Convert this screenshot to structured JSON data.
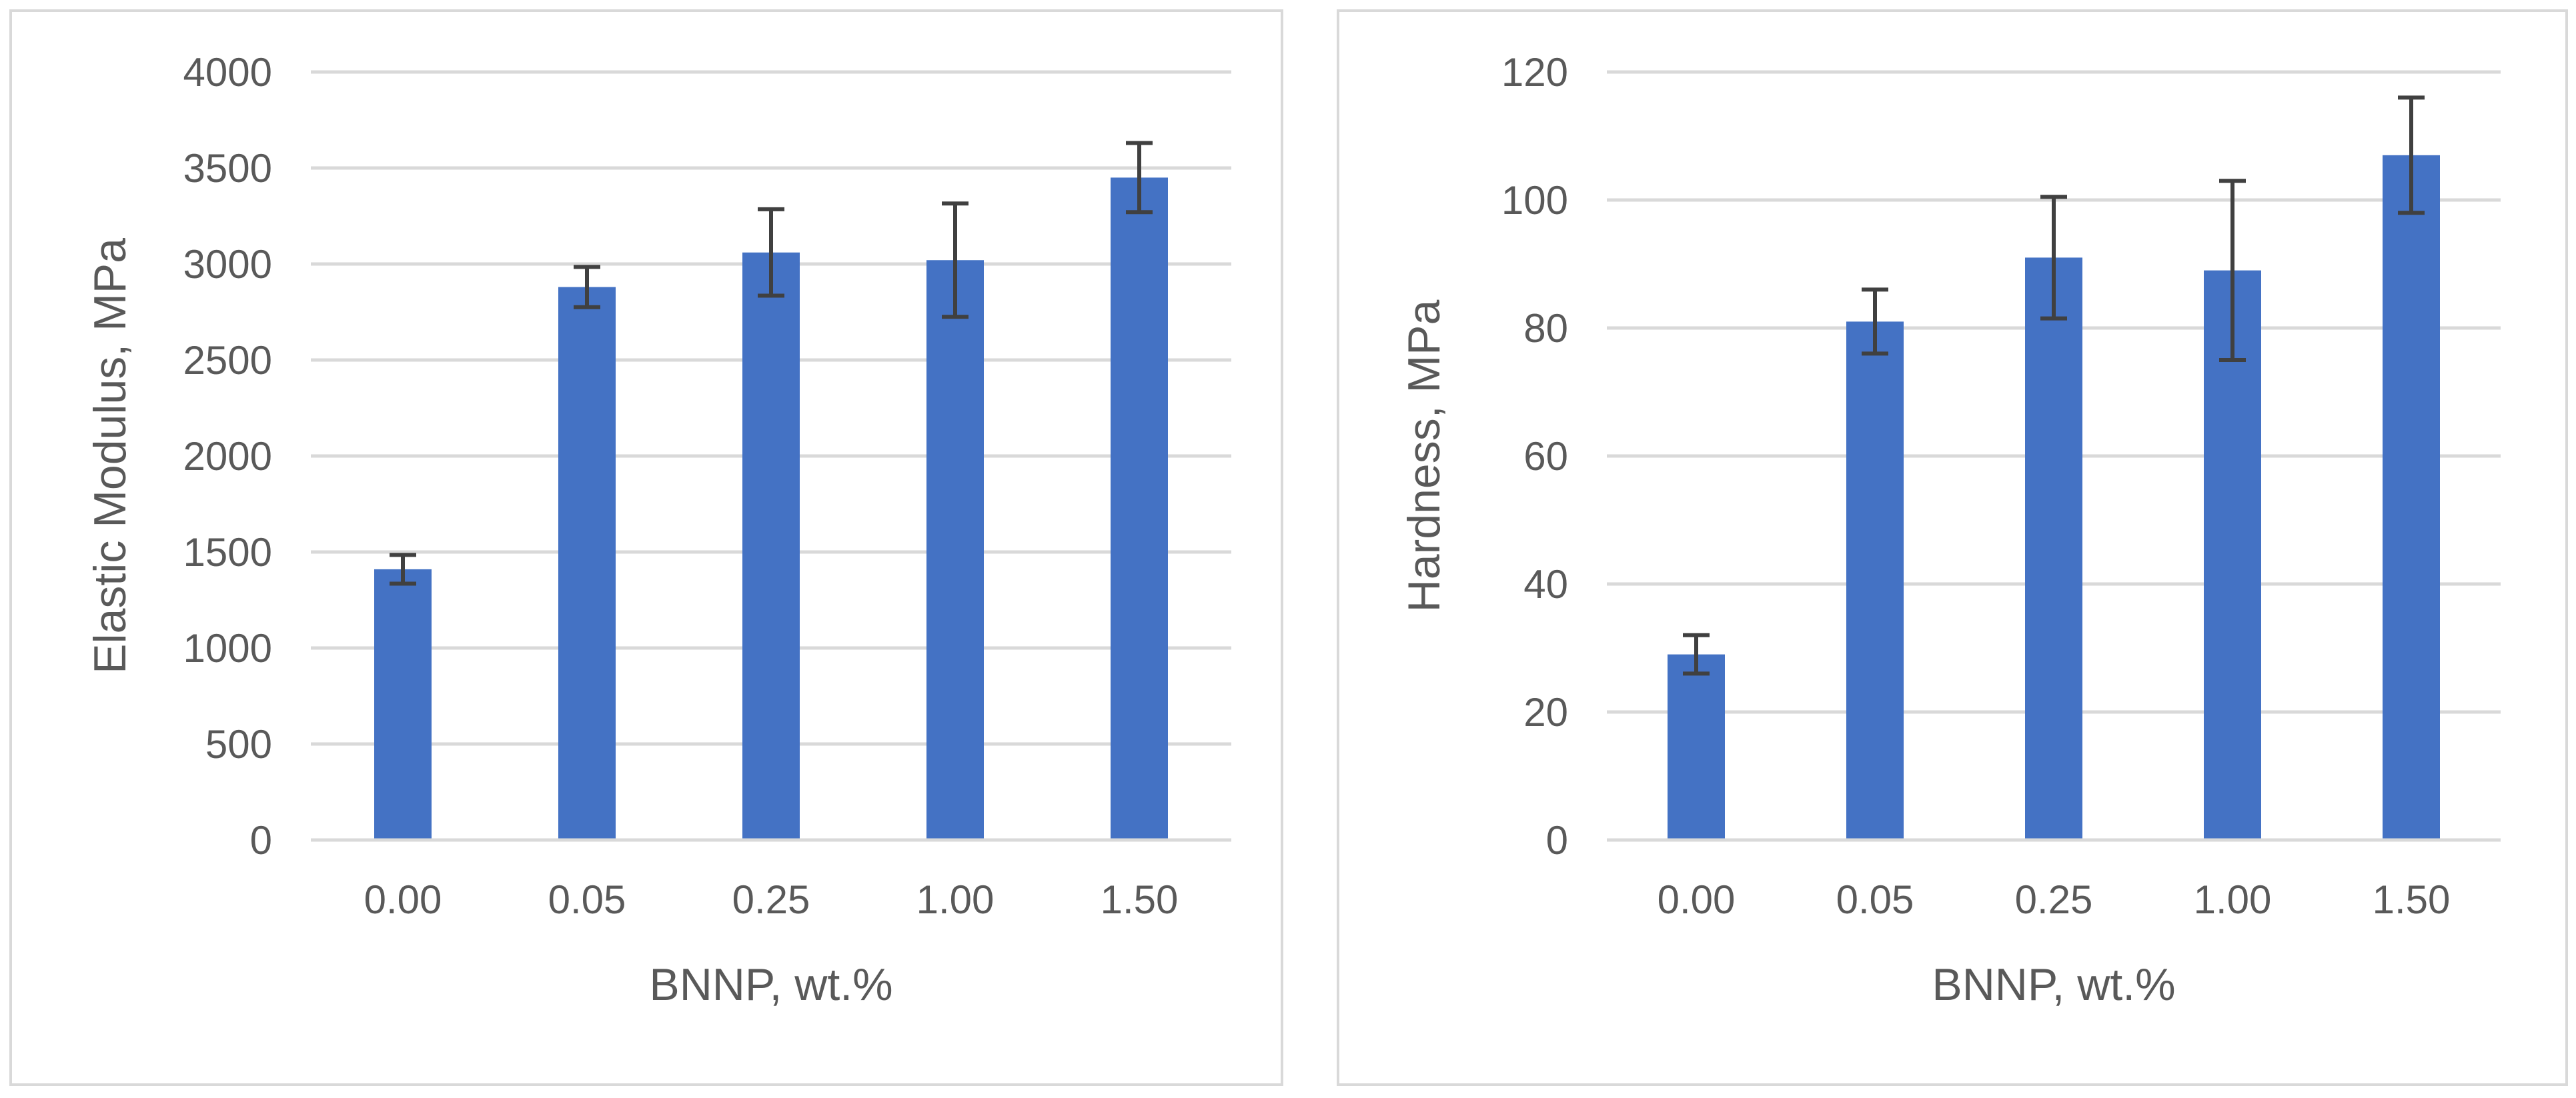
{
  "chart_data": [
    {
      "type": "bar",
      "categories": [
        "0.00",
        "0.05",
        "0.25",
        "1.00",
        "1.50"
      ],
      "values": [
        1410,
        2880,
        3060,
        3020,
        3450
      ],
      "errors": [
        75,
        105,
        225,
        295,
        180
      ],
      "ylim": [
        0,
        4000
      ],
      "yticks": [
        "0",
        "500",
        "1000",
        "1500",
        "2000",
        "2500",
        "3000",
        "3500",
        "4000"
      ],
      "xlabel": "BNNP, wt.%",
      "ylabel": "Elastic Modulus, MPa",
      "grid": true,
      "bar_color": "#4472c4",
      "error_color": "#404040",
      "grid_color": "#d9d9d9"
    },
    {
      "type": "bar",
      "categories": [
        "0.00",
        "0.05",
        "0.25",
        "1.00",
        "1.50"
      ],
      "values": [
        29,
        81,
        91,
        89,
        107
      ],
      "errors": [
        3,
        5,
        9.5,
        14,
        9
      ],
      "ylim": [
        0,
        120
      ],
      "yticks": [
        "0",
        "20",
        "40",
        "60",
        "80",
        "100",
        "120"
      ],
      "xlabel": "BNNP, wt.%",
      "ylabel": "Hardness, MPa",
      "grid": true,
      "bar_color": "#4472c4",
      "error_color": "#404040",
      "grid_color": "#d9d9d9"
    }
  ]
}
